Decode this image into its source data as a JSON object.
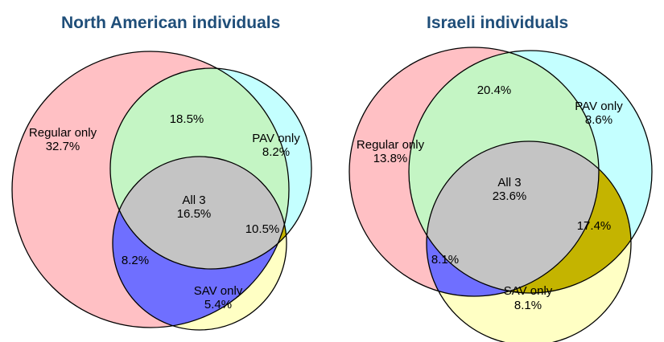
{
  "colors": {
    "title": "#1f4e79",
    "regular_only": "#ffc0c4",
    "pav_only": "#c4ffff",
    "sav_only": "#ffffc4",
    "regular_pav": "#c4f5c4",
    "regular_sav": "#6f6fff",
    "pav_sav": "#c4b400",
    "all_three": "#c4c4c4",
    "outline": "#000000"
  },
  "diagrams": [
    {
      "title": "North American individuals",
      "labels": {
        "regular_only": [
          "Regular only",
          "32.7%"
        ],
        "pav_only": [
          "PAV only",
          "8.2%"
        ],
        "sav_only": [
          "SAV only",
          "5.4%"
        ],
        "regular_pav": "18.5%",
        "regular_sav": "8.2%",
        "pav_sav": "10.5%",
        "all_three": [
          "All 3",
          "16.5%"
        ]
      }
    },
    {
      "title": "Israeli individuals",
      "labels": {
        "regular_only": [
          "Regular only",
          "13.8%"
        ],
        "pav_only": [
          "PAV only",
          "8.6%"
        ],
        "sav_only": [
          "SAV only",
          "8.1%"
        ],
        "regular_pav": "20.4%",
        "regular_sav": "8.1%",
        "pav_sav": "17.4%",
        "all_three": [
          "All 3",
          "23.6%"
        ]
      }
    }
  ]
}
